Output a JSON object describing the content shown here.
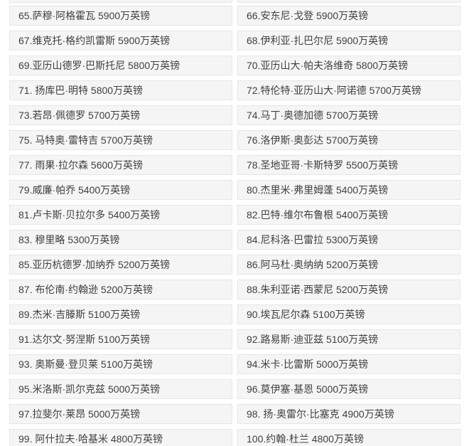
{
  "colors": {
    "page_bg": "#ffffff",
    "cell_bg": "#f5f5f5",
    "cell_border": "#e6e6e6",
    "text": "#404040"
  },
  "table": {
    "description": "player-market-value-ranking-65-to-100",
    "currency_unit": "万英镑",
    "rows": [
      {
        "left": "65.萨穆·阿格霍瓦 5900万英镑",
        "right": "66.安东尼·戈登 5900万英镑"
      },
      {
        "left": "67.维克托·格约凯雷斯 5900万英镑",
        "right": "68.伊利亚·扎巴尔尼 5900万英镑"
      },
      {
        "left": "69.亚历山德罗·巴斯托尼 5800万英镑",
        "right": "70.亚历山大·帕夫洛维奇 5800万英镑"
      },
      {
        "left": "71. 扬库巴·明特 5800万英镑",
        "right": "72.特伦特·亚历山大·阿诺德 5700万英镑"
      },
      {
        "left": "73.若昂·佩德罗 5700万英镑",
        "right": "74.马丁·奥德加德 5700万英镑"
      },
      {
        "left": "75. 马特奥·雷特吉 5700万英镑",
        "right": "76.洛伊斯·奥彭达 5700万英镑"
      },
      {
        "left": "77. 雨果·拉尔森 5600万英镑",
        "right": "78.圣地亚哥·卡斯特罗 5500万英镑"
      },
      {
        "left": "79.威廉·帕乔 5400万英镑",
        "right": "80.杰里米·弗里姆蓬 5400万英镑"
      },
      {
        "left": "81.卢卡斯·贝拉尔多 5400万英镑",
        "right": "82.巴特·维尔布鲁根 5400万英镑"
      },
      {
        "left": "83. 穆里略 5300万英镑",
        "right": "84.尼科洛·巴雷拉 5300万英镑"
      },
      {
        "left": "85.亚历杭德罗·加纳乔 5200万英镑",
        "right": "86.阿马杜·奥纳纳 5200万英镑"
      },
      {
        "left": "87. 布伦南·约翰逊 5200万英镑",
        "right": "88.朱利亚诺·西蒙尼 5200万英镑"
      },
      {
        "left": "89.杰米·吉滕斯 5100万英镑",
        "right": "90.埃瓦尼尔森 5100万英镑"
      },
      {
        "left": "91.达尔文·努涅斯 5100万英镑",
        "right": "92.路易斯·迪亚兹 5100万英镑"
      },
      {
        "left": "93. 奥斯曼·登贝莱 5100万英镑",
        "right": "94.米卡·比雷斯 5000万英镑"
      },
      {
        "left": "95.米洛斯·凯尔克兹 5000万英镑",
        "right": "96.莫伊塞·基恩 5000万英镑"
      },
      {
        "left": "97.拉斐尔·莱昂 5000万英镑",
        "right": "98. 扬·奥雷尔·比塞克 4900万英镑"
      },
      {
        "left": "99. 阿什拉夫·哈基米 4800万英镑",
        "right": "100.约翰·杜兰 4800万英镑"
      }
    ]
  }
}
